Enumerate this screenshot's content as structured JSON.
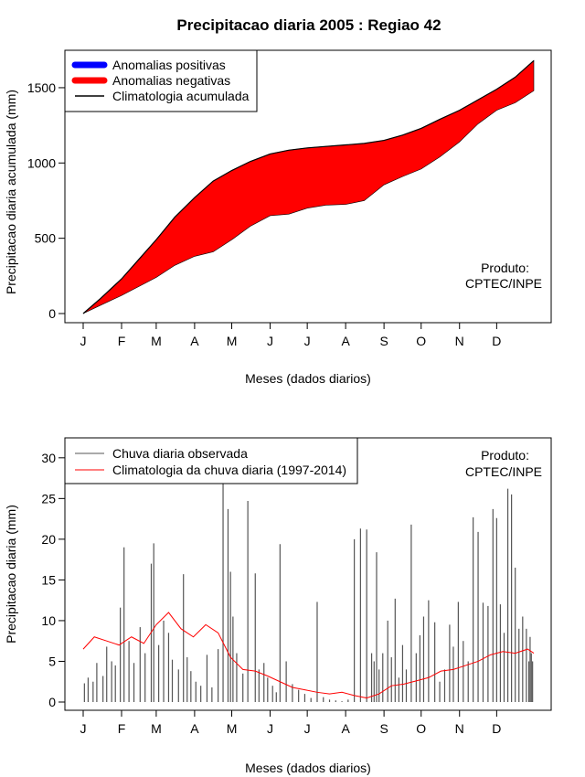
{
  "title": "Precipitacao diaria 2005 : Regiao 42",
  "months": [
    "J",
    "F",
    "M",
    "A",
    "M",
    "J",
    "J",
    "A",
    "S",
    "O",
    "N",
    "D"
  ],
  "chart_data": [
    {
      "type": "area",
      "title": "Precipitacao diaria 2005 : Regiao 42",
      "xlabel": "Meses (dados diarios)",
      "ylabel": "Precipitacao diaria acumulada (mm)",
      "xlim": [
        1,
        365
      ],
      "ylim": [
        0,
        1700
      ],
      "yticks": [
        0,
        500,
        1000,
        1500
      ],
      "month_start_days": [
        1,
        32,
        60,
        91,
        121,
        152,
        182,
        213,
        244,
        274,
        305,
        335
      ],
      "legend": [
        "Anomalias positivas",
        "Anomalias negativas",
        "Climatologia acumulada"
      ],
      "legend_position": "top-left",
      "colors": {
        "positive": "#0000ff",
        "negative": "#ff0000",
        "line": "#000000"
      },
      "annotation": [
        "Produto:",
        "CPTEC/INPE"
      ],
      "climatology_cumulative": {
        "days": [
          1,
          15,
          32,
          46,
          60,
          75,
          91,
          106,
          121,
          136,
          152,
          167,
          182,
          197,
          213,
          228,
          244,
          259,
          274,
          289,
          305,
          320,
          335,
          350,
          365
        ],
        "values": [
          0,
          100,
          230,
          360,
          490,
          640,
          770,
          880,
          950,
          1010,
          1060,
          1085,
          1100,
          1110,
          1120,
          1130,
          1150,
          1185,
          1230,
          1290,
          1350,
          1420,
          1490,
          1570,
          1680
        ]
      },
      "observed_cumulative": {
        "days": [
          1,
          15,
          32,
          46,
          60,
          75,
          91,
          106,
          121,
          136,
          152,
          167,
          182,
          197,
          213,
          228,
          244,
          259,
          274,
          289,
          305,
          320,
          335,
          350,
          365
        ],
        "values": [
          0,
          55,
          120,
          180,
          240,
          320,
          380,
          410,
          490,
          580,
          650,
          660,
          700,
          720,
          725,
          750,
          855,
          910,
          960,
          1040,
          1140,
          1260,
          1350,
          1400,
          1480
        ]
      }
    },
    {
      "type": "line",
      "xlabel": "Meses (dados diarios)",
      "ylabel": "Precipitacao diaria (mm)",
      "xlim": [
        1,
        365
      ],
      "ylim": [
        0,
        32
      ],
      "yticks": [
        0,
        5,
        10,
        15,
        20,
        25,
        30
      ],
      "legend": [
        "Chuva diaria observada",
        "Climatologia da chuva diaria (1997-2014)"
      ],
      "legend_position": "top-left",
      "annotation": [
        "Produto:",
        "CPTEC/INPE"
      ],
      "series": [
        {
          "name": "Chuva diaria observada",
          "style": "vertical-bars",
          "color": "#555555",
          "days": [
            2,
            5,
            9,
            12,
            17,
            20,
            24,
            27,
            31,
            34,
            38,
            42,
            47,
            51,
            56,
            58,
            62,
            66,
            70,
            73,
            78,
            82,
            85,
            88,
            92,
            96,
            101,
            105,
            110,
            114,
            118,
            120,
            122,
            125,
            130,
            134,
            140,
            143,
            147,
            150,
            154,
            157,
            160,
            165,
            170,
            175,
            180,
            185,
            190,
            195,
            200,
            205,
            210,
            215,
            220,
            225,
            230,
            234,
            236,
            238,
            240,
            243,
            247,
            250,
            253,
            256,
            259,
            262,
            266,
            270,
            273,
            276,
            280,
            285,
            289,
            293,
            297,
            300,
            304,
            308,
            312,
            316,
            320,
            324,
            328,
            332,
            335,
            338,
            341,
            344,
            347,
            350,
            353,
            356,
            359,
            361,
            362,
            363,
            364
          ],
          "values": [
            2.3,
            3.0,
            2.5,
            4.8,
            3.2,
            6.8,
            5.0,
            4.5,
            11.6,
            19.0,
            7.5,
            4.8,
            9.2,
            6.0,
            17.0,
            19.5,
            7.0,
            10.0,
            8.5,
            5.2,
            4.0,
            15.7,
            5.5,
            3.8,
            2.5,
            2.0,
            5.8,
            1.8,
            6.5,
            27.0,
            23.7,
            16.0,
            10.5,
            6.0,
            3.5,
            24.7,
            15.8,
            4.0,
            4.8,
            3.0,
            2.0,
            1.2,
            19.4,
            5.0,
            2.2,
            1.5,
            1.0,
            0.5,
            12.3,
            0.6,
            0.3,
            0.2,
            0.1,
            0.3,
            20.0,
            21.3,
            21.2,
            6.0,
            5.0,
            18.4,
            4.0,
            6.0,
            10.0,
            5.5,
            12.7,
            3.0,
            7.0,
            4.0,
            21.8,
            6.0,
            8.2,
            10.5,
            12.5,
            9.8,
            2.5,
            4.0,
            9.5,
            6.8,
            12.3,
            7.5,
            5.0,
            22.7,
            20.9,
            12.2,
            11.8,
            23.7,
            22.6,
            12.0,
            8.5,
            26.2,
            25.5,
            16.5,
            9.0,
            10.5,
            9.0,
            5.0,
            8.0,
            6.0,
            5.0
          ]
        },
        {
          "name": "Climatologia da chuva diaria (1997-2014)",
          "style": "line",
          "color": "#ff0000",
          "days": [
            1,
            10,
            20,
            30,
            40,
            50,
            60,
            70,
            80,
            90,
            100,
            110,
            120,
            130,
            140,
            150,
            160,
            170,
            180,
            190,
            200,
            210,
            220,
            230,
            240,
            250,
            260,
            270,
            280,
            290,
            300,
            310,
            320,
            330,
            340,
            350,
            360,
            365
          ],
          "values": [
            6.5,
            8.0,
            7.5,
            7.0,
            8.0,
            7.2,
            9.5,
            11.0,
            9.0,
            8.0,
            9.5,
            8.5,
            5.5,
            4.0,
            3.8,
            3.2,
            2.5,
            1.8,
            1.5,
            1.2,
            1.0,
            1.2,
            0.8,
            0.5,
            1.0,
            2.0,
            2.2,
            2.6,
            3.0,
            3.8,
            4.0,
            4.5,
            5.0,
            5.8,
            6.2,
            6.0,
            6.5,
            6.0
          ]
        }
      ]
    }
  ]
}
